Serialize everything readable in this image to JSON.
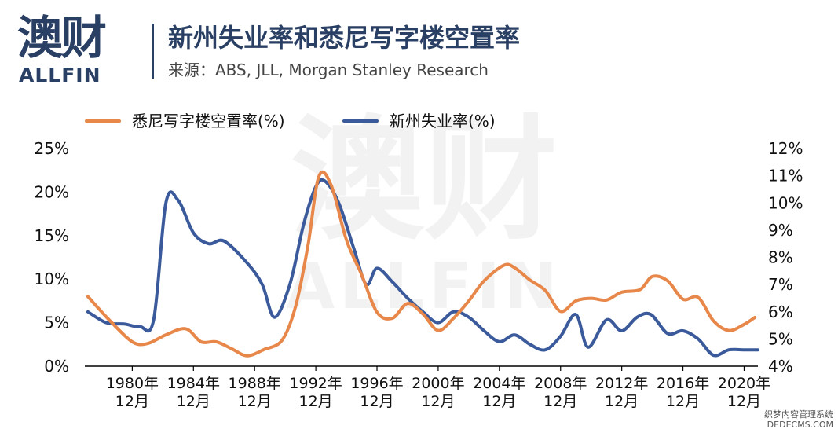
{
  "brand": {
    "logo_cn": "澳财",
    "logo_en": "ALLFIN"
  },
  "header": {
    "title": "新州失业率和悉尼写字楼空置率",
    "source": "来源：ABS, JLL, Morgan Stanley Research"
  },
  "watermark": {
    "cn": "澳财",
    "en": "ALLFIN"
  },
  "corner_mark": {
    "line1": "织梦内容管理系统",
    "line2": "DEDECMS.COM"
  },
  "colors": {
    "vacancy": "#e8874a",
    "unemployment": "#3a5a9b",
    "axis": "#000000"
  },
  "chart_data": {
    "type": "line",
    "title": "新州失业率和悉尼写字楼空置率",
    "x_ticks": [
      {
        "year": 1980,
        "line1": "1980年",
        "line2": "12月"
      },
      {
        "year": 1984,
        "line1": "1984年",
        "line2": "12月"
      },
      {
        "year": 1988,
        "line1": "1988年",
        "line2": "12月"
      },
      {
        "year": 1992,
        "line1": "1992年",
        "line2": "12月"
      },
      {
        "year": 1996,
        "line1": "1996年",
        "line2": "12月"
      },
      {
        "year": 2000,
        "line1": "2000年",
        "line2": "12月"
      },
      {
        "year": 2004,
        "line1": "2004年",
        "line2": "12月"
      },
      {
        "year": 2008,
        "line1": "2008年",
        "line2": "12月"
      },
      {
        "year": 2012,
        "line1": "2012年",
        "line2": "12月"
      },
      {
        "year": 2016,
        "line1": "2016年",
        "line2": "12月"
      },
      {
        "year": 2020,
        "line1": "2020年",
        "line2": "12月"
      }
    ],
    "xlim": [
      1976.9,
      2020.9
    ],
    "y_left": {
      "ticks": [
        "0%",
        "5%",
        "10%",
        "15%",
        "20%",
        "25%"
      ],
      "tick_values": [
        0,
        5,
        10,
        15,
        20,
        25
      ],
      "lim": [
        0,
        25
      ]
    },
    "y_right": {
      "ticks": [
        "4%",
        "5%",
        "6%",
        "7%",
        "8%",
        "9%",
        "10%",
        "11%",
        "12%"
      ],
      "tick_values": [
        4,
        5,
        6,
        7,
        8,
        9,
        10,
        11,
        12
      ],
      "lim": [
        4,
        12
      ]
    },
    "legend_position": "top-left",
    "grid": false,
    "series": [
      {
        "name": "悉尼写字楼空置率(%)",
        "axis": "left",
        "color": "#e8874a",
        "x": [
          1977.1,
          1978.5,
          1980,
          1981,
          1982.2,
          1983.5,
          1984.5,
          1985.5,
          1986.5,
          1987.5,
          1988.6,
          1989.8,
          1990.7,
          1991.5,
          1992.2,
          1993,
          1994,
          1995,
          1996,
          1997,
          1998,
          1999,
          2000,
          2001,
          2002,
          2003,
          2004.3,
          2005,
          2006,
          2007,
          2008,
          2009,
          2010,
          2011,
          2012,
          2013.2,
          2014,
          2015,
          2016,
          2017,
          2018,
          2019,
          2020,
          2020.7
        ],
        "y": [
          8.0,
          5.3,
          2.8,
          2.6,
          3.6,
          4.3,
          2.8,
          2.8,
          2.0,
          1.2,
          1.9,
          3.0,
          7.0,
          14.0,
          21.8,
          20.8,
          14.5,
          10.5,
          6.2,
          5.5,
          7.2,
          6.0,
          4.1,
          5.5,
          7.5,
          9.8,
          11.6,
          11.3,
          9.9,
          8.7,
          6.3,
          7.5,
          7.8,
          7.6,
          8.5,
          8.8,
          10.3,
          9.8,
          7.7,
          7.9,
          5.2,
          4.1,
          4.8,
          5.6
        ]
      },
      {
        "name": "新州失业率(%)",
        "axis": "right",
        "color": "#3a5a9b",
        "x": [
          1977.1,
          1978.3,
          1979.5,
          1980.5,
          1981.4,
          1982.2,
          1983,
          1984,
          1985,
          1986,
          1987.5,
          1988.5,
          1989.3,
          1990.3,
          1991.2,
          1992,
          1992.6,
          1993.5,
          1994.5,
          1995.3,
          1996,
          1997,
          1998,
          1999,
          2000,
          2001,
          2002,
          2003,
          2004,
          2005,
          2006,
          2007,
          2008,
          2009,
          2009.8,
          2011,
          2012,
          2013,
          2013.9,
          2015,
          2016,
          2017,
          2018,
          2019,
          2020,
          2020.9
        ],
        "y": [
          6.0,
          5.6,
          5.55,
          5.45,
          5.7,
          10.0,
          10.1,
          8.9,
          8.5,
          8.6,
          7.8,
          7.0,
          5.8,
          7.0,
          9.2,
          10.6,
          10.8,
          10.0,
          8.3,
          7.0,
          7.6,
          7.1,
          6.5,
          6.0,
          5.6,
          6.0,
          5.8,
          5.3,
          4.9,
          5.15,
          4.8,
          4.6,
          5.1,
          5.9,
          4.7,
          5.7,
          5.3,
          5.8,
          5.9,
          5.2,
          5.3,
          5.0,
          4.4,
          4.6,
          4.6,
          4.6
        ]
      }
    ]
  }
}
